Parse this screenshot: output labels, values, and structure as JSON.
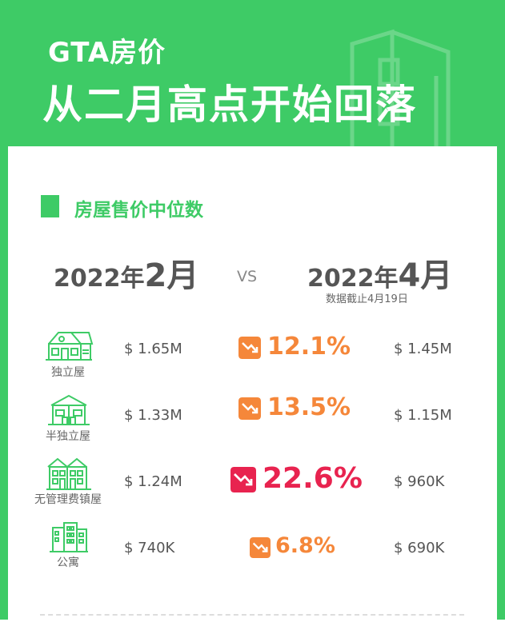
{
  "header": {
    "line1": "GTA房价",
    "line2": "从二月高点开始回落"
  },
  "section": {
    "title": "房屋售价中位数"
  },
  "compare": {
    "left_year": "2022年",
    "left_month": "2月",
    "vs": "VS",
    "right_year": "2022年",
    "right_month": "4月",
    "note": "数据截止4月19日"
  },
  "rows": [
    {
      "type": "独立屋",
      "feb": "$ 1.65M",
      "change": "12.1%",
      "apr": "$ 1.45M",
      "color": "#f5873a"
    },
    {
      "type": "半独立屋",
      "feb": "$ 1.33M",
      "change": "13.5%",
      "apr": "$ 1.15M",
      "color": "#f5873a"
    },
    {
      "type": "无管理费镇屋",
      "feb": "$ 1.24M",
      "change": "22.6%",
      "apr": "$ 960K",
      "color": "#e8234f"
    },
    {
      "type": "公寓",
      "feb": "$ 740K",
      "change": "6.8%",
      "apr": "$ 690K",
      "color": "#f5873a"
    }
  ],
  "colors": {
    "brand_green": "#3ecb66",
    "orange": "#f5873a",
    "red": "#e8234f"
  },
  "icons": [
    "detached-house-icon",
    "semi-detached-house-icon",
    "townhouse-icon",
    "condo-icon",
    "trend-down-icon"
  ]
}
